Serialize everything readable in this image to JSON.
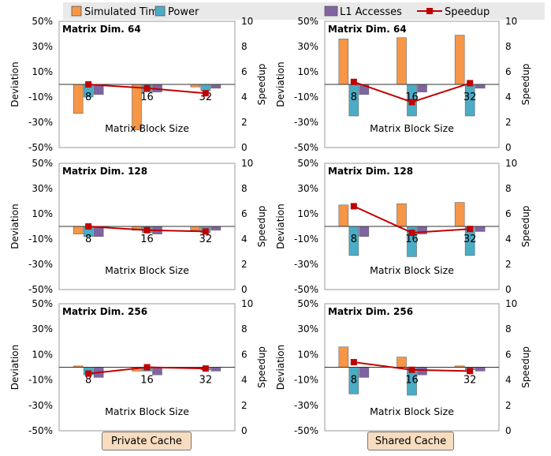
{
  "legend": {
    "items": [
      {
        "label": "Simulated Time",
        "color": "#f79646",
        "kind": "box"
      },
      {
        "label": "Power",
        "color": "#4bacc6",
        "kind": "box"
      },
      {
        "label": "L1 Accesses",
        "color": "#8064a2",
        "kind": "box"
      },
      {
        "label": "Speedup",
        "color": "#c00000",
        "kind": "line"
      }
    ]
  },
  "buttons": {
    "private_label": "Private Cache",
    "shared_label": "Shared Cache"
  },
  "chart_data": [
    {
      "type": "bar+line",
      "panel": "private-64",
      "title": "Matrix Dim. 64",
      "xlabel": "Matrix Block Size",
      "ylabel": "Deviation",
      "y2label": "Speedup",
      "categories": [
        "8",
        "16",
        "32"
      ],
      "ylim": [
        -50,
        50
      ],
      "yticks": [
        50,
        30,
        10,
        -10,
        -30,
        -50
      ],
      "y2lim": [
        0,
        10
      ],
      "y2ticks": [
        10,
        8,
        6,
        4,
        2,
        0
      ],
      "series": [
        {
          "name": "Simulated Time",
          "values": [
            -23,
            -36,
            -2
          ]
        },
        {
          "name": "Power",
          "values": [
            -10,
            -6,
            -5
          ]
        },
        {
          "name": "L1 Accesses",
          "values": [
            -8,
            -6,
            -3
          ]
        }
      ],
      "speedup": [
        5.0,
        4.7,
        4.3
      ]
    },
    {
      "type": "bar+line",
      "panel": "shared-64",
      "title": "Matrix Dim. 64",
      "xlabel": "Matrix Block Size",
      "ylabel": "Deviation",
      "y2label": "Speedup",
      "categories": [
        "8",
        "16",
        "32"
      ],
      "ylim": [
        -50,
        50
      ],
      "yticks": [
        50,
        30,
        10,
        -10,
        -30,
        -50
      ],
      "y2lim": [
        0,
        10
      ],
      "y2ticks": [
        10,
        8,
        6,
        4,
        2,
        0
      ],
      "series": [
        {
          "name": "Simulated Time",
          "values": [
            36,
            37,
            39
          ]
        },
        {
          "name": "Power",
          "values": [
            -25,
            -25,
            -25
          ]
        },
        {
          "name": "L1 Accesses",
          "values": [
            -8,
            -6,
            -3
          ]
        }
      ],
      "speedup": [
        5.2,
        3.6,
        5.1
      ]
    },
    {
      "type": "bar+line",
      "panel": "private-128",
      "title": "Matrix Dim. 128",
      "xlabel": "Matrix Block Size",
      "ylabel": "Deviation",
      "y2label": "Speedup",
      "categories": [
        "8",
        "16",
        "32"
      ],
      "ylim": [
        -50,
        50
      ],
      "yticks": [
        50,
        30,
        10,
        -10,
        -30,
        -50
      ],
      "y2lim": [
        0,
        10
      ],
      "y2ticks": [
        10,
        8,
        6,
        4,
        2,
        0
      ],
      "series": [
        {
          "name": "Simulated Time",
          "values": [
            -6,
            -3,
            -3
          ]
        },
        {
          "name": "Power",
          "values": [
            -8,
            -5,
            -5
          ]
        },
        {
          "name": "L1 Accesses",
          "values": [
            -8,
            -6,
            -3
          ]
        }
      ],
      "speedup": [
        5.0,
        4.7,
        4.6
      ]
    },
    {
      "type": "bar+line",
      "panel": "shared-128",
      "title": "Matrix Dim. 128",
      "xlabel": "Matrix Block Size",
      "ylabel": "Deviation",
      "y2label": "Speedup",
      "categories": [
        "8",
        "16",
        "32"
      ],
      "ylim": [
        -50,
        50
      ],
      "yticks": [
        50,
        30,
        10,
        -10,
        -30,
        -50
      ],
      "y2lim": [
        0,
        10
      ],
      "y2ticks": [
        10,
        8,
        6,
        4,
        2,
        0
      ],
      "series": [
        {
          "name": "Simulated Time",
          "values": [
            17,
            18,
            19
          ]
        },
        {
          "name": "Power",
          "values": [
            -23,
            -24,
            -23
          ]
        },
        {
          "name": "L1 Accesses",
          "values": [
            -8,
            -6,
            -4
          ]
        }
      ],
      "speedup": [
        6.6,
        4.5,
        4.8
      ]
    },
    {
      "type": "bar+line",
      "panel": "private-256",
      "title": "Matrix Dim. 256",
      "xlabel": "Matrix Block Size",
      "ylabel": "Deviation",
      "y2label": "Speedup",
      "categories": [
        "8",
        "16",
        "32"
      ],
      "ylim": [
        -50,
        50
      ],
      "yticks": [
        50,
        30,
        10,
        -10,
        -30,
        -50
      ],
      "y2lim": [
        0,
        10
      ],
      "y2ticks": [
        10,
        8,
        6,
        4,
        2,
        0
      ],
      "series": [
        {
          "name": "Simulated Time",
          "values": [
            1,
            -3,
            -1
          ]
        },
        {
          "name": "Power",
          "values": [
            -6,
            -3,
            -2
          ]
        },
        {
          "name": "L1 Accesses",
          "values": [
            -8,
            -6,
            -3
          ]
        }
      ],
      "speedup": [
        4.5,
        5.0,
        4.9
      ]
    },
    {
      "type": "bar+line",
      "panel": "shared-256",
      "title": "Matrix Dim. 256",
      "xlabel": "Matrix Block Size",
      "ylabel": "Deviation",
      "y2label": "Speedup",
      "categories": [
        "8",
        "16",
        "32"
      ],
      "ylim": [
        -50,
        50
      ],
      "yticks": [
        50,
        30,
        10,
        -10,
        -30,
        -50
      ],
      "y2lim": [
        0,
        10
      ],
      "y2ticks": [
        10,
        8,
        6,
        4,
        2,
        0
      ],
      "series": [
        {
          "name": "Simulated Time",
          "values": [
            16,
            8,
            1
          ]
        },
        {
          "name": "Power",
          "values": [
            -21,
            -22,
            -2
          ]
        },
        {
          "name": "L1 Accesses",
          "values": [
            -8,
            -6,
            -3
          ]
        }
      ],
      "speedup": [
        5.4,
        4.8,
        4.7
      ]
    }
  ]
}
